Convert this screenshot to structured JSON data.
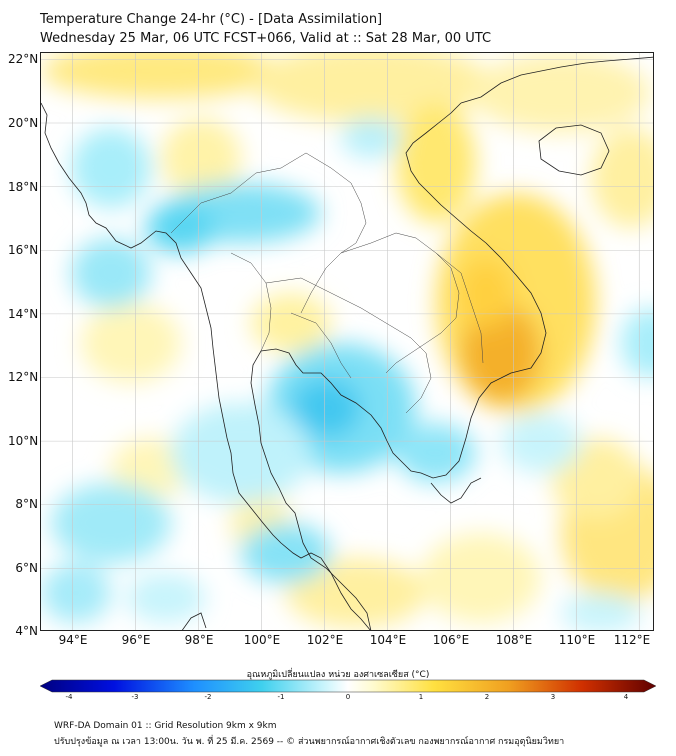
{
  "title": {
    "line1": "Temperature Change 24-hr (°C) - [Data Assimilation]",
    "line2": "Wednesday 25 Mar, 06 UTC FCST+066, Valid at :: Sat 28 Mar, 00 UTC"
  },
  "map": {
    "lon_range": [
      93,
      112.5
    ],
    "lat_range": [
      4,
      22.2
    ],
    "lat_labels": [
      "22°N",
      "20°N",
      "18°N",
      "16°N",
      "14°N",
      "12°N",
      "10°N",
      "8°N",
      "6°N",
      "4°N"
    ],
    "lat_values": [
      22,
      20,
      18,
      16,
      14,
      12,
      10,
      8,
      6,
      4
    ],
    "lon_labels": [
      "94°E",
      "96°E",
      "98°E",
      "100°E",
      "102°E",
      "104°E",
      "106°E",
      "108°E",
      "110°E",
      "112°E"
    ],
    "lon_values": [
      94,
      96,
      98,
      100,
      102,
      104,
      106,
      108,
      110,
      112
    ],
    "colors": {
      "background": "#ffffff",
      "cold_light": "#9be8f5",
      "cold": "#3fd0ee",
      "cold_strong": "#4ab0e8",
      "warm_light": "#fff6a8",
      "warm": "#ffe066",
      "warm_strong": "#f0a820",
      "coast": "#222222",
      "grid": "#c8c8c8"
    }
  },
  "colorbar": {
    "title": "อุณหภูมิเปลี่ยนแปลง หน่วย องศาเซลเซียส (°C)",
    "ticks": [
      "-4",
      "-3",
      "-2",
      "-1",
      "0",
      "1",
      "2",
      "3",
      "4"
    ],
    "tick_values": [
      -4,
      -3,
      -2,
      -1,
      0,
      1,
      2,
      3,
      4
    ],
    "range": [
      -4,
      4
    ]
  },
  "footer": {
    "line1": "WRF-DA Domain 01 :: Grid Resolution 9km x 9km",
    "line2": "ปรับปรุงข้อมูล ณ เวลา 13:00น. วัน พ. ที่ 25 มี.ค. 2569 -- © ส่วนพยากรณ์อากาศเชิงตัวเลข กองพยากรณ์อากาศ กรมอุตุนิยมวิทยา"
  }
}
